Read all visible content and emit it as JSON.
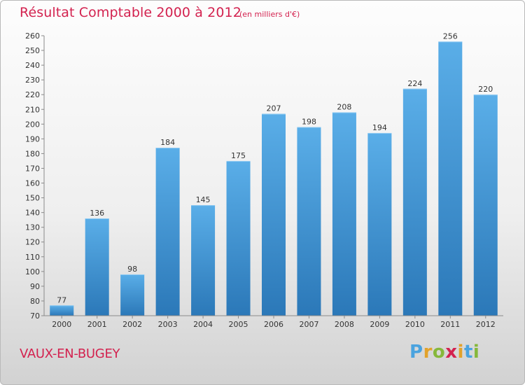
{
  "chart_data": {
    "type": "bar",
    "title": "Résultat Comptable 2000 à 2012",
    "subtitle": "(en milliers d'€)",
    "categories": [
      "2000",
      "2001",
      "2002",
      "2003",
      "2004",
      "2005",
      "2006",
      "2007",
      "2008",
      "2009",
      "2010",
      "2011",
      "2012"
    ],
    "values": [
      77,
      136,
      98,
      184,
      145,
      175,
      207,
      198,
      208,
      194,
      224,
      256,
      220
    ],
    "ylim": [
      70,
      260
    ],
    "yticks": [
      70,
      80,
      90,
      100,
      110,
      120,
      130,
      140,
      150,
      160,
      170,
      180,
      190,
      200,
      210,
      220,
      230,
      240,
      250,
      260
    ],
    "xlabel": "",
    "ylabel": "",
    "grid": false,
    "bar_color_top": "#5aaee8",
    "bar_color_bottom": "#2b78b8",
    "label_color": "#333333"
  },
  "footer": {
    "commune": "VAUX-EN-BUGEY",
    "logo_text": "Proxiti"
  },
  "colors": {
    "accent": "#d3224f"
  }
}
